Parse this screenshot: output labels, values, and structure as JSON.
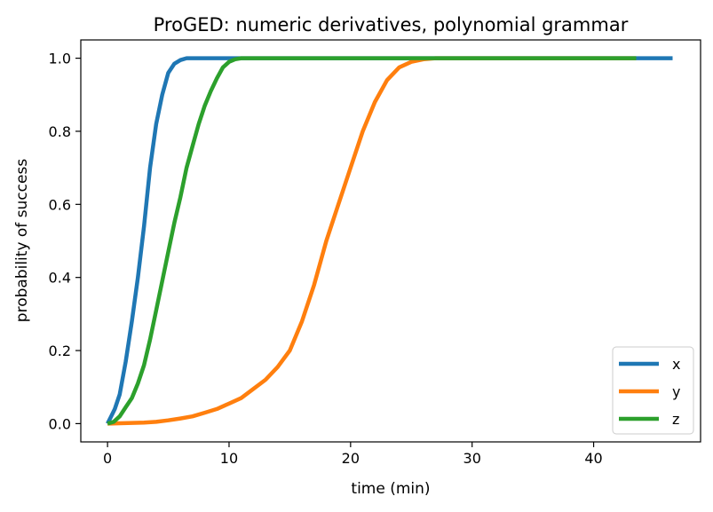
{
  "chart_data": {
    "type": "line",
    "title": "ProGED: numeric derivatives, polynomial grammar",
    "xlabel": "time (min)",
    "ylabel": "probability of success",
    "xlim": [
      -2.2,
      48.8
    ],
    "ylim": [
      -0.05,
      1.05
    ],
    "xticks": [
      0,
      10,
      20,
      30,
      40
    ],
    "xtick_labels": [
      "0",
      "10",
      "20",
      "30",
      "40"
    ],
    "yticks": [
      0.0,
      0.2,
      0.4,
      0.6,
      0.8,
      1.0
    ],
    "ytick_labels": [
      "0.0",
      "0.2",
      "0.4",
      "0.6",
      "0.8",
      "1.0"
    ],
    "grid": false,
    "legend_position": "lower-right",
    "series": [
      {
        "name": "x",
        "color": "#1f77b4",
        "points": [
          [
            0,
            0
          ],
          [
            0.3,
            0.02
          ],
          [
            0.6,
            0.04
          ],
          [
            1.0,
            0.08
          ],
          [
            1.5,
            0.17
          ],
          [
            2.0,
            0.28
          ],
          [
            2.5,
            0.4
          ],
          [
            3.0,
            0.54
          ],
          [
            3.5,
            0.7
          ],
          [
            4.0,
            0.82
          ],
          [
            4.5,
            0.9
          ],
          [
            5.0,
            0.96
          ],
          [
            5.5,
            0.985
          ],
          [
            6.0,
            0.995
          ],
          [
            6.5,
            1.0
          ],
          [
            7.0,
            1.0
          ],
          [
            20,
            1.0
          ],
          [
            30,
            1.0
          ],
          [
            40,
            1.0
          ],
          [
            46.5,
            1.0
          ]
        ]
      },
      {
        "name": "y",
        "color": "#ff7f0e",
        "points": [
          [
            0,
            0
          ],
          [
            1,
            0.001
          ],
          [
            2,
            0.002
          ],
          [
            3,
            0.003
          ],
          [
            4,
            0.005
          ],
          [
            5,
            0.009
          ],
          [
            6,
            0.014
          ],
          [
            7,
            0.02
          ],
          [
            8,
            0.03
          ],
          [
            9,
            0.04
          ],
          [
            10,
            0.055
          ],
          [
            11,
            0.07
          ],
          [
            12,
            0.095
          ],
          [
            13,
            0.12
          ],
          [
            14,
            0.155
          ],
          [
            15,
            0.2
          ],
          [
            16,
            0.28
          ],
          [
            17,
            0.38
          ],
          [
            18,
            0.5
          ],
          [
            19,
            0.6
          ],
          [
            20,
            0.7
          ],
          [
            21,
            0.8
          ],
          [
            22,
            0.88
          ],
          [
            23,
            0.94
          ],
          [
            24,
            0.975
          ],
          [
            25,
            0.99
          ],
          [
            26,
            0.997
          ],
          [
            27,
            1.0
          ],
          [
            35,
            1.0
          ],
          [
            43.5,
            1.0
          ]
        ]
      },
      {
        "name": "z",
        "color": "#2ca02c",
        "points": [
          [
            0,
            0
          ],
          [
            0.5,
            0.005
          ],
          [
            1,
            0.02
          ],
          [
            1.5,
            0.045
          ],
          [
            2,
            0.07
          ],
          [
            2.5,
            0.11
          ],
          [
            3,
            0.16
          ],
          [
            3.5,
            0.23
          ],
          [
            4,
            0.31
          ],
          [
            4.5,
            0.39
          ],
          [
            5,
            0.47
          ],
          [
            5.5,
            0.55
          ],
          [
            6,
            0.62
          ],
          [
            6.5,
            0.7
          ],
          [
            7,
            0.76
          ],
          [
            7.5,
            0.82
          ],
          [
            8,
            0.87
          ],
          [
            8.5,
            0.91
          ],
          [
            9,
            0.945
          ],
          [
            9.5,
            0.975
          ],
          [
            10,
            0.99
          ],
          [
            10.5,
            0.997
          ],
          [
            11,
            1.0
          ],
          [
            20,
            1.0
          ],
          [
            30,
            1.0
          ],
          [
            40,
            1.0
          ],
          [
            43.5,
            1.0
          ]
        ]
      }
    ]
  }
}
